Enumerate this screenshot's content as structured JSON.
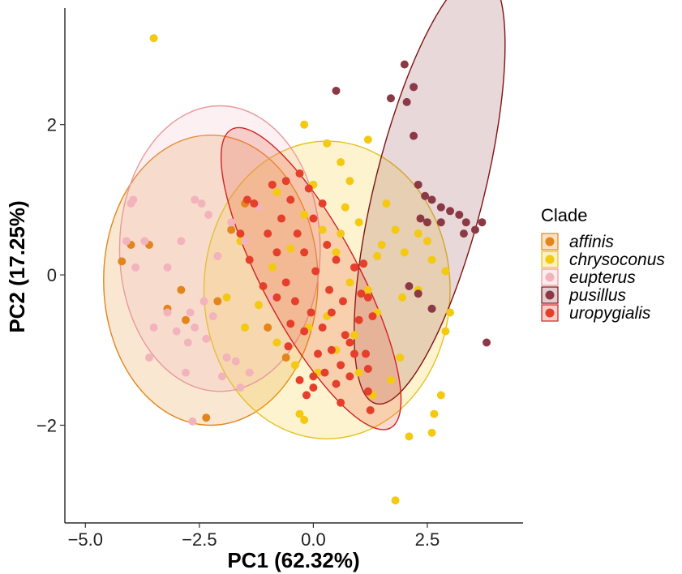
{
  "chart_data": {
    "type": "scatter",
    "xlabel": "PC1 (62.32%)",
    "ylabel": "PC2 (17.25%)",
    "xlim": [
      -5.45,
      4.6
    ],
    "ylim": [
      -3.3,
      3.55
    ],
    "x_ticks": [
      -5.0,
      -2.5,
      0.0,
      2.5
    ],
    "x_tick_labels": [
      "−5.0",
      "−2.5",
      "0.0",
      "2.5"
    ],
    "y_ticks": [
      -2,
      0,
      2
    ],
    "y_tick_labels": [
      "−2",
      "0",
      "2"
    ],
    "grid": false,
    "legend": {
      "title": "Clade",
      "placement": "right"
    },
    "series": [
      {
        "name": "affinis",
        "color": "#E3851B",
        "fill": "#E3851B",
        "ellipse": {
          "cx": -2.25,
          "cy": -0.07,
          "rx": 2.35,
          "ry": 1.93,
          "angle": 0
        },
        "points": [
          [
            -4.2,
            0.18
          ],
          [
            -4.0,
            0.4
          ],
          [
            -3.6,
            0.4
          ],
          [
            -3.2,
            -0.45
          ],
          [
            -2.8,
            -0.6
          ],
          [
            -2.35,
            -1.9
          ],
          [
            -2.1,
            -0.35
          ],
          [
            -1.5,
            0.95
          ],
          [
            -1.0,
            -0.7
          ],
          [
            -0.6,
            -1.1
          ],
          [
            -1.8,
            0.6
          ],
          [
            -2.9,
            -0.2
          ]
        ]
      },
      {
        "name": "chrysoconus",
        "color": "#E5C01E",
        "fill": "#F4C911",
        "ellipse": {
          "cx": 0.3,
          "cy": -0.2,
          "rx": 2.7,
          "ry": 1.98,
          "angle": 0
        },
        "points": [
          [
            -3.5,
            3.15
          ],
          [
            -0.2,
            2.0
          ],
          [
            0.3,
            1.75
          ],
          [
            0.6,
            1.5
          ],
          [
            0.8,
            1.25
          ],
          [
            1.2,
            1.8
          ],
          [
            1.0,
            0.7
          ],
          [
            1.5,
            0.4
          ],
          [
            1.8,
            0.6
          ],
          [
            2.0,
            0.3
          ],
          [
            2.3,
            0.55
          ],
          [
            2.6,
            0.2
          ],
          [
            2.9,
            0.05
          ],
          [
            3.0,
            -0.5
          ],
          [
            2.9,
            -0.75
          ],
          [
            2.8,
            -1.6
          ],
          [
            2.65,
            -1.85
          ],
          [
            2.6,
            -2.1
          ],
          [
            2.1,
            -2.15
          ],
          [
            1.8,
            -3.0
          ],
          [
            1.3,
            -1.6
          ],
          [
            1.7,
            -1.4
          ],
          [
            1.9,
            -1.1
          ],
          [
            1.4,
            -0.5
          ],
          [
            1.2,
            -0.2
          ],
          [
            0.8,
            -0.1
          ],
          [
            0.5,
            0.3
          ],
          [
            0.2,
            0.6
          ],
          [
            -0.2,
            0.8
          ],
          [
            -0.5,
            0.35
          ],
          [
            -0.9,
            0.1
          ],
          [
            -1.2,
            -0.4
          ],
          [
            -0.8,
            -0.9
          ],
          [
            -0.4,
            -1.2
          ],
          [
            0.1,
            -1.3
          ],
          [
            0.5,
            -1.0
          ],
          [
            0.9,
            -0.8
          ],
          [
            -1.5,
            -0.7
          ],
          [
            -1.9,
            -0.3
          ],
          [
            -1.6,
            0.45
          ],
          [
            -1.2,
            0.9
          ],
          [
            -0.8,
            1.1
          ],
          [
            -0.3,
            -1.85
          ],
          [
            -0.2,
            -1.93
          ],
          [
            0.7,
            0.9
          ],
          [
            1.6,
            0.95
          ],
          [
            1.95,
            -0.3
          ],
          [
            2.3,
            -0.2
          ],
          [
            0.0,
            1.2
          ],
          [
            1.0,
            -1.3
          ],
          [
            0.3,
            -0.55
          ],
          [
            -0.1,
            -0.7
          ],
          [
            0.6,
            0.55
          ],
          [
            2.5,
            0.45
          ],
          [
            1.4,
            0.25
          ]
        ]
      },
      {
        "name": "eupterus",
        "color": "#E89A9A",
        "fill": "#F2B3BD",
        "ellipse": {
          "cx": -2.05,
          "cy": 0.35,
          "rx": 2.2,
          "ry": 1.9,
          "angle": 0
        },
        "points": [
          [
            -4.0,
            0.95
          ],
          [
            -3.95,
            1.0
          ],
          [
            -4.1,
            0.45
          ],
          [
            -3.9,
            0.1
          ],
          [
            -3.7,
            0.45
          ],
          [
            -3.2,
            0.1
          ],
          [
            -2.9,
            0.45
          ],
          [
            -2.6,
            1.0
          ],
          [
            -2.45,
            0.95
          ],
          [
            -2.3,
            0.8
          ],
          [
            -2.1,
            0.25
          ],
          [
            -1.8,
            0.7
          ],
          [
            -2.4,
            -0.35
          ],
          [
            -2.2,
            -0.55
          ],
          [
            -2.6,
            -0.7
          ],
          [
            -3.5,
            -0.7
          ],
          [
            -3.0,
            -0.75
          ],
          [
            -2.7,
            -0.5
          ],
          [
            -1.9,
            -1.1
          ],
          [
            -1.7,
            -1.15
          ],
          [
            -1.4,
            -1.3
          ],
          [
            -1.6,
            -1.5
          ],
          [
            -2.0,
            -1.35
          ],
          [
            -2.65,
            -1.95
          ],
          [
            -3.6,
            -1.1
          ],
          [
            -2.8,
            -1.3
          ],
          [
            -1.2,
            0.9
          ],
          [
            -1.5,
            0.45
          ],
          [
            -0.9,
            -0.3
          ],
          [
            -3.2,
            -0.5
          ],
          [
            -2.75,
            -0.9
          ],
          [
            -2.35,
            -0.85
          ]
        ]
      },
      {
        "name": "pusillus",
        "color": "#801212",
        "fill": "#8B3A45",
        "ellipse": {
          "cx": 2.55,
          "cy": 1.15,
          "rx": 1.2,
          "ry": 2.95,
          "angle": 14
        },
        "points": [
          [
            2.0,
            2.8
          ],
          [
            1.7,
            2.35
          ],
          [
            2.2,
            2.5
          ],
          [
            2.05,
            2.3
          ],
          [
            2.2,
            1.85
          ],
          [
            2.3,
            1.2
          ],
          [
            2.45,
            1.05
          ],
          [
            2.6,
            1.0
          ],
          [
            2.8,
            0.9
          ],
          [
            3.0,
            0.85
          ],
          [
            3.2,
            0.8
          ],
          [
            3.35,
            0.7
          ],
          [
            3.55,
            0.6
          ],
          [
            3.7,
            0.7
          ],
          [
            3.3,
            0.55
          ],
          [
            2.8,
            0.7
          ],
          [
            2.5,
            0.7
          ],
          [
            2.35,
            0.75
          ],
          [
            2.1,
            -0.15
          ],
          [
            2.3,
            -0.25
          ],
          [
            2.6,
            -0.45
          ],
          [
            3.8,
            -0.9
          ],
          [
            0.5,
            2.45
          ]
        ]
      },
      {
        "name": "uropygialis",
        "color": "#D42222",
        "fill": "#E53F2B",
        "ellipse": {
          "cx": -0.05,
          "cy": -0.05,
          "rx": 1.05,
          "ry": 2.25,
          "angle": -28
        },
        "points": [
          [
            -0.6,
            1.25
          ],
          [
            -0.5,
            1.0
          ],
          [
            -0.3,
            1.35
          ],
          [
            -0.1,
            1.15
          ],
          [
            0.0,
            0.75
          ],
          [
            0.3,
            0.4
          ],
          [
            0.5,
            0.2
          ],
          [
            0.9,
            0.1
          ],
          [
            1.1,
            0.15
          ],
          [
            1.2,
            -0.3
          ],
          [
            1.0,
            -0.6
          ],
          [
            0.7,
            -0.8
          ],
          [
            0.4,
            -0.5
          ],
          [
            0.2,
            -0.7
          ],
          [
            -0.05,
            -0.5
          ],
          [
            -0.4,
            -0.35
          ],
          [
            -0.6,
            -0.1
          ],
          [
            -0.8,
            0.3
          ],
          [
            -1.0,
            0.55
          ],
          [
            -1.3,
            0.95
          ],
          [
            -1.6,
            0.55
          ],
          [
            -1.4,
            0.2
          ],
          [
            -1.1,
            -0.15
          ],
          [
            -0.8,
            -0.3
          ],
          [
            -0.5,
            -0.65
          ],
          [
            -0.2,
            -0.75
          ],
          [
            0.1,
            -1.05
          ],
          [
            0.4,
            -1.0
          ],
          [
            0.6,
            -1.2
          ],
          [
            0.8,
            -1.35
          ],
          [
            0.5,
            -1.45
          ],
          [
            0.25,
            -1.3
          ],
          [
            1.2,
            -1.55
          ],
          [
            1.25,
            -1.8
          ],
          [
            0.0,
            -1.35
          ],
          [
            -0.3,
            -1.4
          ],
          [
            -0.55,
            -0.95
          ],
          [
            0.8,
            -0.9
          ],
          [
            0.9,
            -1.05
          ],
          [
            1.3,
            -0.55
          ],
          [
            0.65,
            -0.35
          ],
          [
            -0.2,
            0.3
          ],
          [
            0.2,
            0.95
          ],
          [
            -0.9,
            1.2
          ],
          [
            -1.45,
            1.0
          ],
          [
            0.35,
            -0.2
          ],
          [
            0.05,
            0.05
          ],
          [
            -0.35,
            0.55
          ],
          [
            -0.7,
            0.75
          ],
          [
            1.05,
            -0.25
          ],
          [
            1.2,
            -1.25
          ],
          [
            -0.15,
            -1.6
          ],
          [
            0.0,
            -1.5
          ],
          [
            0.6,
            -1.7
          ],
          [
            1.15,
            -1.05
          ]
        ]
      }
    ]
  }
}
